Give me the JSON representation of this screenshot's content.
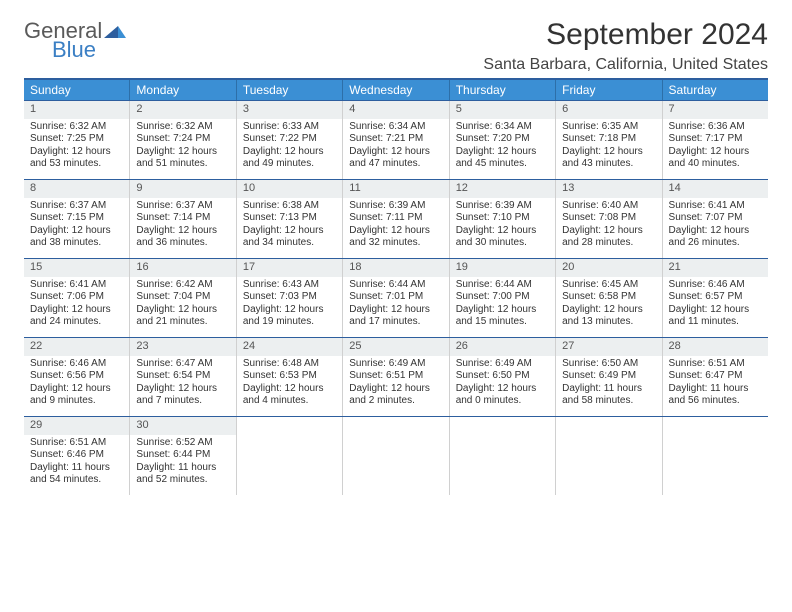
{
  "logo": {
    "general": "General",
    "blue": "Blue"
  },
  "title": "September 2024",
  "location": "Santa Barbara, California, United States",
  "colors": {
    "header_bg": "#3b8fd4",
    "header_border": "#2d5e9e",
    "date_bar_bg": "#eceff0",
    "text": "#333333",
    "logo_gray": "#5a5a5a",
    "logo_blue": "#3b7fc4"
  },
  "day_names": [
    "Sunday",
    "Monday",
    "Tuesday",
    "Wednesday",
    "Thursday",
    "Friday",
    "Saturday"
  ],
  "weeks": [
    [
      {
        "date": "1",
        "sunrise": "Sunrise: 6:32 AM",
        "sunset": "Sunset: 7:25 PM",
        "daylight": "Daylight: 12 hours and 53 minutes."
      },
      {
        "date": "2",
        "sunrise": "Sunrise: 6:32 AM",
        "sunset": "Sunset: 7:24 PM",
        "daylight": "Daylight: 12 hours and 51 minutes."
      },
      {
        "date": "3",
        "sunrise": "Sunrise: 6:33 AM",
        "sunset": "Sunset: 7:22 PM",
        "daylight": "Daylight: 12 hours and 49 minutes."
      },
      {
        "date": "4",
        "sunrise": "Sunrise: 6:34 AM",
        "sunset": "Sunset: 7:21 PM",
        "daylight": "Daylight: 12 hours and 47 minutes."
      },
      {
        "date": "5",
        "sunrise": "Sunrise: 6:34 AM",
        "sunset": "Sunset: 7:20 PM",
        "daylight": "Daylight: 12 hours and 45 minutes."
      },
      {
        "date": "6",
        "sunrise": "Sunrise: 6:35 AM",
        "sunset": "Sunset: 7:18 PM",
        "daylight": "Daylight: 12 hours and 43 minutes."
      },
      {
        "date": "7",
        "sunrise": "Sunrise: 6:36 AM",
        "sunset": "Sunset: 7:17 PM",
        "daylight": "Daylight: 12 hours and 40 minutes."
      }
    ],
    [
      {
        "date": "8",
        "sunrise": "Sunrise: 6:37 AM",
        "sunset": "Sunset: 7:15 PM",
        "daylight": "Daylight: 12 hours and 38 minutes."
      },
      {
        "date": "9",
        "sunrise": "Sunrise: 6:37 AM",
        "sunset": "Sunset: 7:14 PM",
        "daylight": "Daylight: 12 hours and 36 minutes."
      },
      {
        "date": "10",
        "sunrise": "Sunrise: 6:38 AM",
        "sunset": "Sunset: 7:13 PM",
        "daylight": "Daylight: 12 hours and 34 minutes."
      },
      {
        "date": "11",
        "sunrise": "Sunrise: 6:39 AM",
        "sunset": "Sunset: 7:11 PM",
        "daylight": "Daylight: 12 hours and 32 minutes."
      },
      {
        "date": "12",
        "sunrise": "Sunrise: 6:39 AM",
        "sunset": "Sunset: 7:10 PM",
        "daylight": "Daylight: 12 hours and 30 minutes."
      },
      {
        "date": "13",
        "sunrise": "Sunrise: 6:40 AM",
        "sunset": "Sunset: 7:08 PM",
        "daylight": "Daylight: 12 hours and 28 minutes."
      },
      {
        "date": "14",
        "sunrise": "Sunrise: 6:41 AM",
        "sunset": "Sunset: 7:07 PM",
        "daylight": "Daylight: 12 hours and 26 minutes."
      }
    ],
    [
      {
        "date": "15",
        "sunrise": "Sunrise: 6:41 AM",
        "sunset": "Sunset: 7:06 PM",
        "daylight": "Daylight: 12 hours and 24 minutes."
      },
      {
        "date": "16",
        "sunrise": "Sunrise: 6:42 AM",
        "sunset": "Sunset: 7:04 PM",
        "daylight": "Daylight: 12 hours and 21 minutes."
      },
      {
        "date": "17",
        "sunrise": "Sunrise: 6:43 AM",
        "sunset": "Sunset: 7:03 PM",
        "daylight": "Daylight: 12 hours and 19 minutes."
      },
      {
        "date": "18",
        "sunrise": "Sunrise: 6:44 AM",
        "sunset": "Sunset: 7:01 PM",
        "daylight": "Daylight: 12 hours and 17 minutes."
      },
      {
        "date": "19",
        "sunrise": "Sunrise: 6:44 AM",
        "sunset": "Sunset: 7:00 PM",
        "daylight": "Daylight: 12 hours and 15 minutes."
      },
      {
        "date": "20",
        "sunrise": "Sunrise: 6:45 AM",
        "sunset": "Sunset: 6:58 PM",
        "daylight": "Daylight: 12 hours and 13 minutes."
      },
      {
        "date": "21",
        "sunrise": "Sunrise: 6:46 AM",
        "sunset": "Sunset: 6:57 PM",
        "daylight": "Daylight: 12 hours and 11 minutes."
      }
    ],
    [
      {
        "date": "22",
        "sunrise": "Sunrise: 6:46 AM",
        "sunset": "Sunset: 6:56 PM",
        "daylight": "Daylight: 12 hours and 9 minutes."
      },
      {
        "date": "23",
        "sunrise": "Sunrise: 6:47 AM",
        "sunset": "Sunset: 6:54 PM",
        "daylight": "Daylight: 12 hours and 7 minutes."
      },
      {
        "date": "24",
        "sunrise": "Sunrise: 6:48 AM",
        "sunset": "Sunset: 6:53 PM",
        "daylight": "Daylight: 12 hours and 4 minutes."
      },
      {
        "date": "25",
        "sunrise": "Sunrise: 6:49 AM",
        "sunset": "Sunset: 6:51 PM",
        "daylight": "Daylight: 12 hours and 2 minutes."
      },
      {
        "date": "26",
        "sunrise": "Sunrise: 6:49 AM",
        "sunset": "Sunset: 6:50 PM",
        "daylight": "Daylight: 12 hours and 0 minutes."
      },
      {
        "date": "27",
        "sunrise": "Sunrise: 6:50 AM",
        "sunset": "Sunset: 6:49 PM",
        "daylight": "Daylight: 11 hours and 58 minutes."
      },
      {
        "date": "28",
        "sunrise": "Sunrise: 6:51 AM",
        "sunset": "Sunset: 6:47 PM",
        "daylight": "Daylight: 11 hours and 56 minutes."
      }
    ],
    [
      {
        "date": "29",
        "sunrise": "Sunrise: 6:51 AM",
        "sunset": "Sunset: 6:46 PM",
        "daylight": "Daylight: 11 hours and 54 minutes."
      },
      {
        "date": "30",
        "sunrise": "Sunrise: 6:52 AM",
        "sunset": "Sunset: 6:44 PM",
        "daylight": "Daylight: 11 hours and 52 minutes."
      },
      {
        "empty": true
      },
      {
        "empty": true
      },
      {
        "empty": true
      },
      {
        "empty": true
      },
      {
        "empty": true
      }
    ]
  ]
}
